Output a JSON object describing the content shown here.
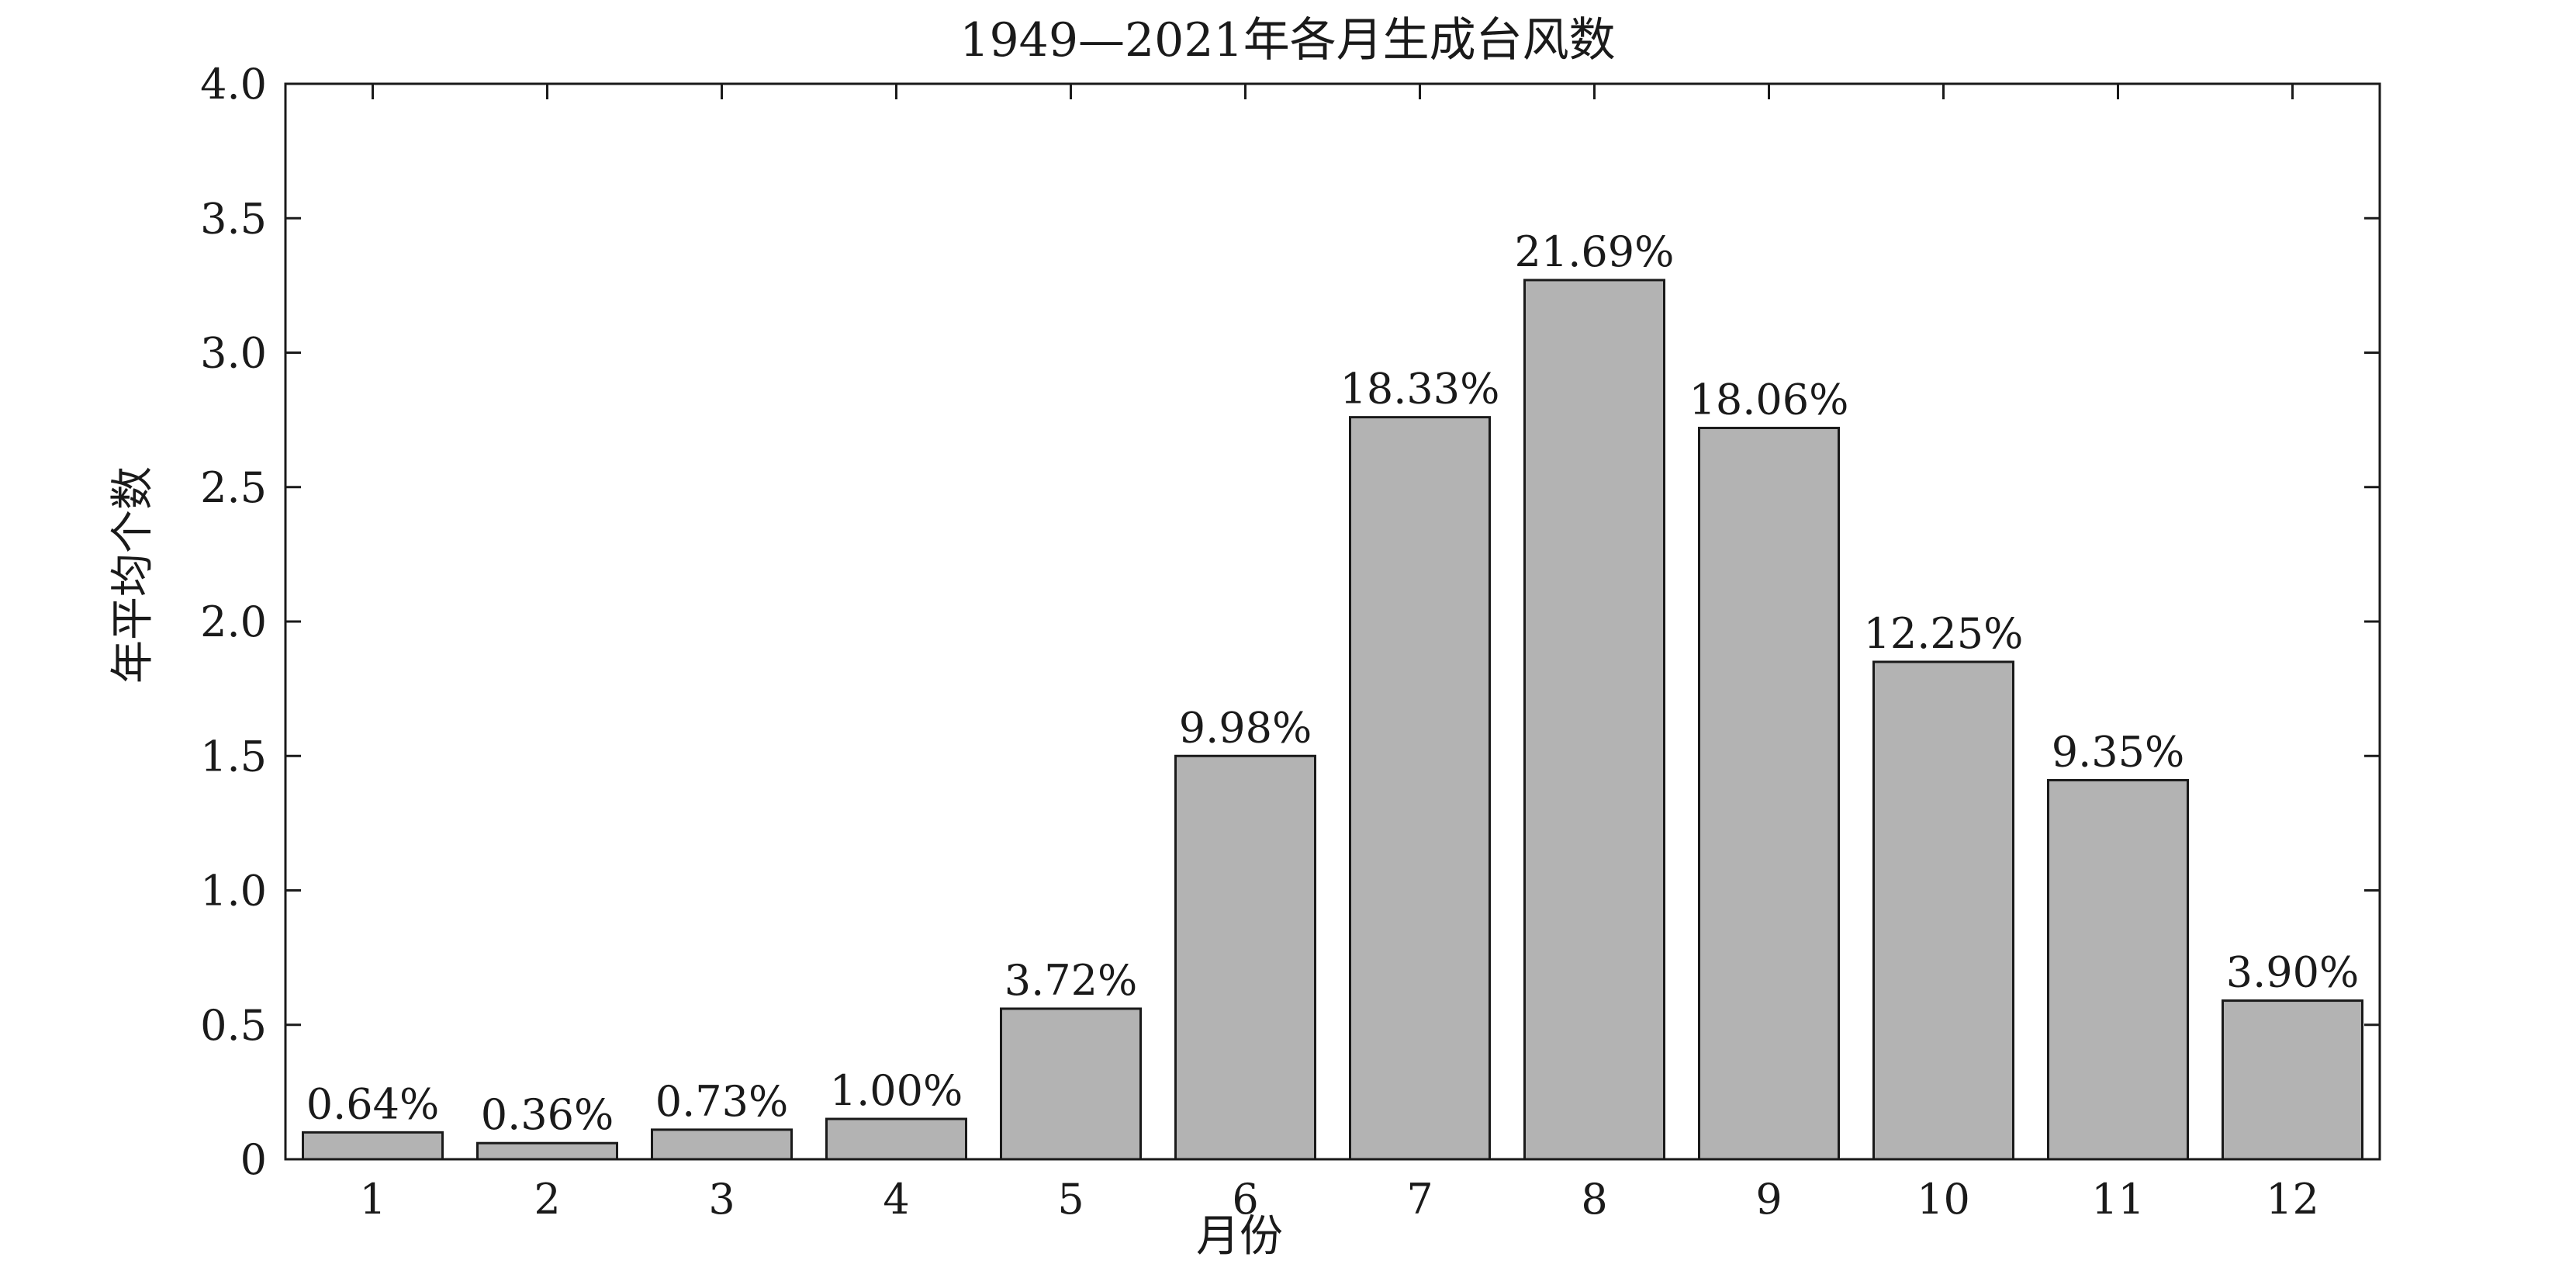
{
  "chart_data": {
    "type": "bar",
    "title": "1949—2021年各月生成台风数",
    "xlabel": "月份",
    "ylabel": "年平均个数",
    "categories": [
      "1",
      "2",
      "3",
      "4",
      "5",
      "6",
      "7",
      "8",
      "9",
      "10",
      "11",
      "12"
    ],
    "values": [
      0.1,
      0.06,
      0.11,
      0.15,
      0.56,
      1.5,
      2.76,
      3.27,
      2.72,
      1.85,
      1.41,
      0.59
    ],
    "data_labels": [
      "0.64%",
      "0.36%",
      "0.73%",
      "1.00%",
      "3.72%",
      "9.98%",
      "18.33%",
      "21.69%",
      "18.06%",
      "12.25%",
      "9.35%",
      "3.90%"
    ],
    "ylim": [
      0,
      4.0
    ],
    "yticks": [
      0,
      0.5,
      1.0,
      1.5,
      2.0,
      2.5,
      3.0,
      3.5,
      4.0
    ],
    "ytick_labels": [
      "0",
      "0.5",
      "1.0",
      "1.5",
      "2.0",
      "2.5",
      "3.0",
      "3.5",
      "4.0"
    ],
    "grid": false,
    "legend": "none",
    "bar_color": "#b3b3b3",
    "edge_color": "#1a1a1a"
  }
}
